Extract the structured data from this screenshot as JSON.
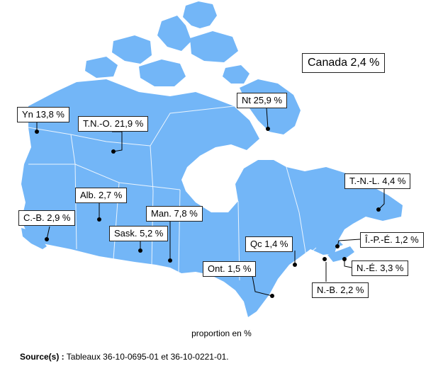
{
  "national": {
    "label": "Canada 2,4 %"
  },
  "regions": [
    {
      "id": "yn",
      "label": "Yn 13,8 %"
    },
    {
      "id": "tno",
      "label": "T.N.-O. 21,9 %"
    },
    {
      "id": "nt",
      "label": "Nt 25,9 %"
    },
    {
      "id": "tnl",
      "label": "T.-N.-L. 4,4 %"
    },
    {
      "id": "alb",
      "label": "Alb. 2,7 %"
    },
    {
      "id": "cb",
      "label": "C.-B. 2,9 %"
    },
    {
      "id": "man",
      "label": "Man. 7,8 %"
    },
    {
      "id": "sask",
      "label": "Sask. 5,2 %"
    },
    {
      "id": "qc",
      "label": "Qc 1,4 %"
    },
    {
      "id": "ipe",
      "label": "Î.-P.-É. 1,2 %"
    },
    {
      "id": "ont",
      "label": "Ont. 1,5 %"
    },
    {
      "id": "ne",
      "label": "N.-É. 3,3 %"
    },
    {
      "id": "nb",
      "label": "N.-B. 2,2 %"
    }
  ],
  "map_color": "#73b6f7",
  "caption": "proportion en %",
  "source": {
    "prefix": "Source(s) :",
    "text": " Tableaux 36-10-0695-01 et 36-10-0221-01."
  }
}
